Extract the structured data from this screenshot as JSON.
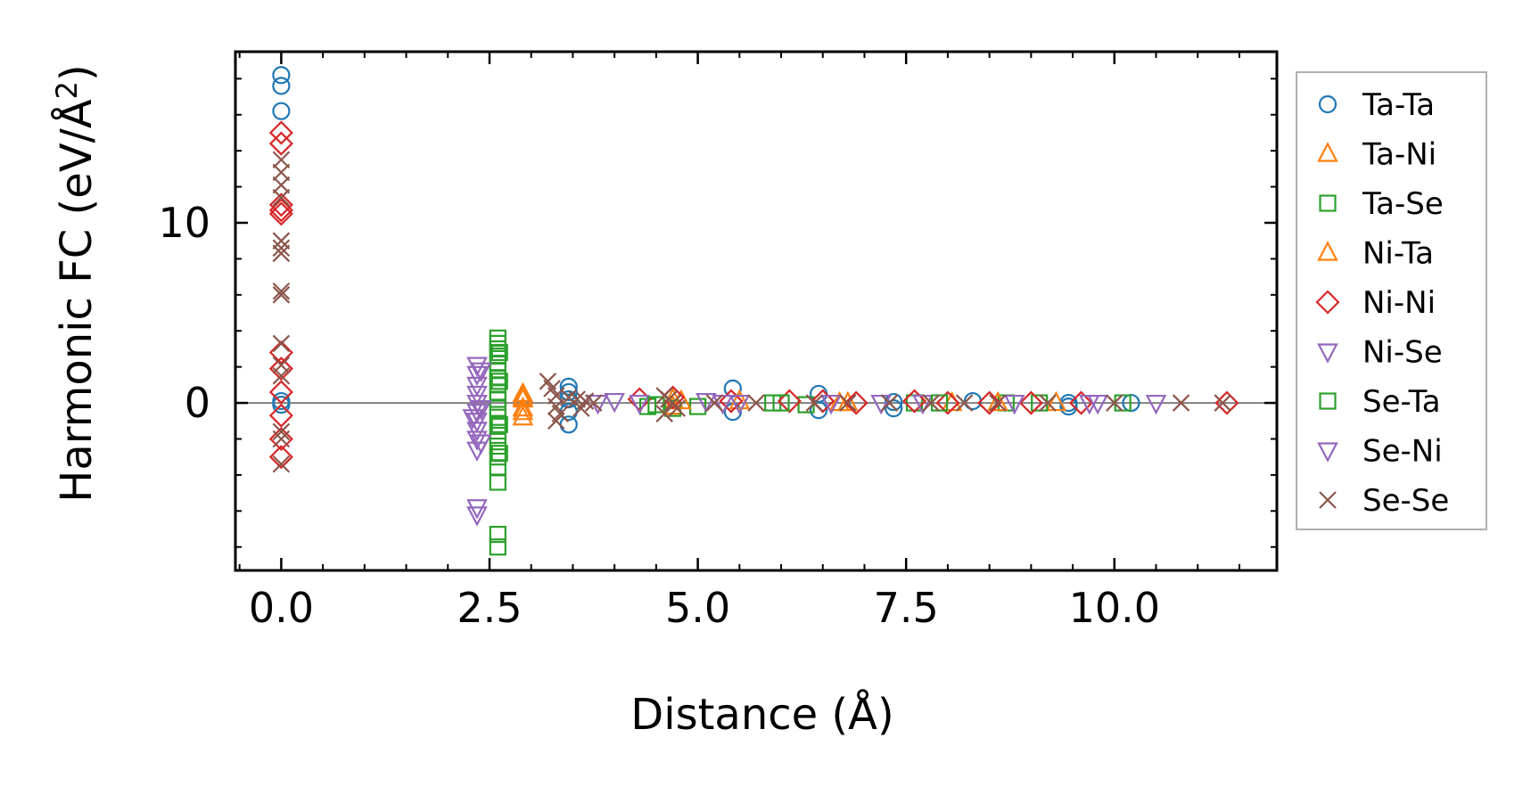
{
  "chart_data": {
    "type": "scatter",
    "xlabel": "Distance (Å)",
    "ylabel_main": "Harmonic FC (eV/Å",
    "ylabel_sup": "2",
    "ylabel_close": ")",
    "xlim": [
      -0.55,
      11.95
    ],
    "ylim": [
      -9.3,
      19.5
    ],
    "xticks": [
      0.0,
      2.5,
      5.0,
      7.5,
      10.0
    ],
    "xtick_labels": [
      "0.0",
      "2.5",
      "5.0",
      "7.5",
      "10.0"
    ],
    "yticks": [
      0,
      10
    ],
    "ytick_labels": [
      "0",
      "10"
    ],
    "zero_line": true,
    "grid": false,
    "legend_position": "right, outside",
    "series": [
      {
        "name": "Ta-Ta",
        "marker": "circle",
        "color": "#1f77b4",
        "points": [
          [
            0,
            18.2
          ],
          [
            0,
            17.6
          ],
          [
            0,
            16.2
          ],
          [
            0,
            0.1
          ],
          [
            0,
            -0.1
          ],
          [
            3.45,
            0.9
          ],
          [
            3.45,
            0.6
          ],
          [
            3.45,
            0.2
          ],
          [
            3.45,
            -0.5
          ],
          [
            3.45,
            -1.2
          ],
          [
            5.42,
            0.8
          ],
          [
            5.42,
            -0.5
          ],
          [
            6.45,
            0.5
          ],
          [
            6.45,
            -0.4
          ],
          [
            7.35,
            0.05
          ],
          [
            7.35,
            -0.3
          ],
          [
            8.3,
            0.1
          ],
          [
            9.45,
            0.0
          ],
          [
            9.45,
            -0.2
          ],
          [
            10.2,
            0.0
          ]
        ]
      },
      {
        "name": "Ta-Ni",
        "marker": "triangle-up",
        "color": "#ff7f0e",
        "points": [
          [
            2.9,
            0.5
          ],
          [
            2.9,
            0.2
          ],
          [
            2.9,
            -0.3
          ],
          [
            2.9,
            -0.8
          ],
          [
            4.7,
            0.2
          ],
          [
            4.7,
            -0.2
          ],
          [
            5.5,
            0.1
          ],
          [
            6.7,
            0.0
          ],
          [
            8.05,
            0.0
          ],
          [
            9.3,
            0.0
          ]
        ]
      },
      {
        "name": "Ta-Se",
        "marker": "square",
        "color": "#2ca02c",
        "points": [
          [
            2.6,
            3.6
          ],
          [
            2.6,
            3.3
          ],
          [
            2.6,
            3.0
          ],
          [
            2.6,
            2.6
          ],
          [
            2.6,
            2.2
          ],
          [
            2.6,
            1.8
          ],
          [
            2.6,
            1.4
          ],
          [
            2.6,
            1.0
          ],
          [
            2.6,
            0.6
          ],
          [
            2.6,
            0.2
          ],
          [
            2.6,
            -0.3
          ],
          [
            2.6,
            -0.8
          ],
          [
            2.6,
            -1.3
          ],
          [
            2.6,
            -1.8
          ],
          [
            2.6,
            -2.4
          ],
          [
            2.6,
            -3.0
          ],
          [
            2.6,
            -3.6
          ],
          [
            2.6,
            -4.4
          ],
          [
            2.6,
            -7.3
          ],
          [
            2.6,
            -8.0
          ],
          [
            4.4,
            -0.2
          ],
          [
            4.7,
            -0.3
          ],
          [
            5.0,
            -0.2
          ],
          [
            5.9,
            0.0
          ],
          [
            6.3,
            -0.1
          ],
          [
            7.6,
            0.0
          ],
          [
            8.7,
            0.0
          ],
          [
            9.1,
            0.0
          ],
          [
            10.1,
            0.0
          ]
        ]
      },
      {
        "name": "Ni-Ta",
        "marker": "triangle-up",
        "color": "#ff7f0e",
        "points": [
          [
            2.9,
            0.3
          ],
          [
            2.9,
            -0.5
          ],
          [
            4.8,
            0.1
          ],
          [
            6.8,
            0.0
          ],
          [
            8.6,
            0.0
          ]
        ]
      },
      {
        "name": "Ni-Ni",
        "marker": "diamond",
        "color": "#d62728",
        "points": [
          [
            0,
            15.0
          ],
          [
            0,
            14.4
          ],
          [
            0,
            11.0
          ],
          [
            0,
            10.7
          ],
          [
            0,
            10.5
          ],
          [
            0,
            2.8
          ],
          [
            0,
            1.9
          ],
          [
            0,
            0.6
          ],
          [
            0,
            -0.7
          ],
          [
            0,
            -2.0
          ],
          [
            0,
            -3.0
          ],
          [
            4.3,
            0.2
          ],
          [
            4.7,
            0.3
          ],
          [
            5.4,
            0.1
          ],
          [
            6.1,
            0.1
          ],
          [
            6.5,
            0.1
          ],
          [
            6.9,
            0.0
          ],
          [
            7.6,
            0.1
          ],
          [
            8.0,
            0.0
          ],
          [
            8.5,
            0.0
          ],
          [
            9.0,
            0.0
          ],
          [
            9.6,
            0.0
          ],
          [
            11.35,
            0.0
          ]
        ]
      },
      {
        "name": "Ni-Se",
        "marker": "triangle-down",
        "color": "#9467bd",
        "points": [
          [
            2.35,
            2.1
          ],
          [
            2.35,
            1.6
          ],
          [
            2.35,
            1.0
          ],
          [
            2.35,
            0.5
          ],
          [
            2.35,
            0.0
          ],
          [
            2.35,
            -0.5
          ],
          [
            2.35,
            -1.0
          ],
          [
            2.35,
            -1.5
          ],
          [
            2.35,
            -2.0
          ],
          [
            2.35,
            -2.6
          ],
          [
            2.35,
            -5.8
          ],
          [
            2.35,
            -6.2
          ],
          [
            2.3,
            -0.8
          ],
          [
            4.0,
            0.1
          ],
          [
            4.3,
            0.0
          ],
          [
            5.1,
            0.1
          ],
          [
            5.5,
            0.0
          ],
          [
            6.6,
            0.0
          ],
          [
            7.7,
            0.0
          ],
          [
            8.8,
            0.0
          ],
          [
            9.8,
            0.0
          ],
          [
            10.5,
            0.0
          ]
        ]
      },
      {
        "name": "Se-Ta",
        "marker": "square",
        "color": "#2ca02c",
        "points": [
          [
            2.62,
            2.8
          ],
          [
            2.62,
            1.2
          ],
          [
            2.62,
            -1.2
          ],
          [
            2.62,
            -2.8
          ],
          [
            4.5,
            -0.1
          ],
          [
            6.0,
            0.0
          ],
          [
            7.9,
            0.0
          ]
        ]
      },
      {
        "name": "Se-Ni",
        "marker": "triangle-down",
        "color": "#9467bd",
        "points": [
          [
            2.4,
            1.8
          ],
          [
            2.4,
            -0.3
          ],
          [
            2.4,
            -2.2
          ],
          [
            3.8,
            0.0
          ],
          [
            5.3,
            0.0
          ],
          [
            7.2,
            0.0
          ],
          [
            9.7,
            0.0
          ]
        ]
      },
      {
        "name": "Se-Se",
        "marker": "x",
        "color": "#8c564b",
        "points": [
          [
            0,
            13.5
          ],
          [
            0,
            12.8
          ],
          [
            0,
            12.1
          ],
          [
            0,
            11.4
          ],
          [
            0,
            9.0
          ],
          [
            0,
            8.6
          ],
          [
            0,
            8.3
          ],
          [
            0,
            6.2
          ],
          [
            0,
            6.0
          ],
          [
            0,
            3.3
          ],
          [
            0,
            2.1
          ],
          [
            0,
            1.5
          ],
          [
            0,
            -1.6
          ],
          [
            0,
            -2.0
          ],
          [
            0,
            -3.4
          ],
          [
            3.2,
            1.2
          ],
          [
            3.25,
            0.8
          ],
          [
            3.3,
            0.4
          ],
          [
            3.3,
            -0.2
          ],
          [
            3.35,
            -0.6
          ],
          [
            3.3,
            -1.0
          ],
          [
            3.45,
            0.3
          ],
          [
            3.55,
            0.2
          ],
          [
            3.6,
            -0.3
          ],
          [
            3.65,
            0.1
          ],
          [
            3.75,
            0.0
          ],
          [
            4.6,
            0.4
          ],
          [
            4.6,
            -0.6
          ],
          [
            4.65,
            0.2
          ],
          [
            4.7,
            0.0
          ],
          [
            4.75,
            -0.3
          ],
          [
            5.2,
            0.0
          ],
          [
            5.7,
            0.0
          ],
          [
            6.4,
            0.0
          ],
          [
            6.8,
            0.0
          ],
          [
            7.3,
            0.0
          ],
          [
            7.8,
            0.0
          ],
          [
            8.2,
            0.0
          ],
          [
            8.6,
            0.0
          ],
          [
            9.2,
            0.0
          ],
          [
            10.0,
            0.0
          ],
          [
            10.8,
            0.0
          ],
          [
            11.3,
            0.0
          ]
        ]
      }
    ]
  }
}
